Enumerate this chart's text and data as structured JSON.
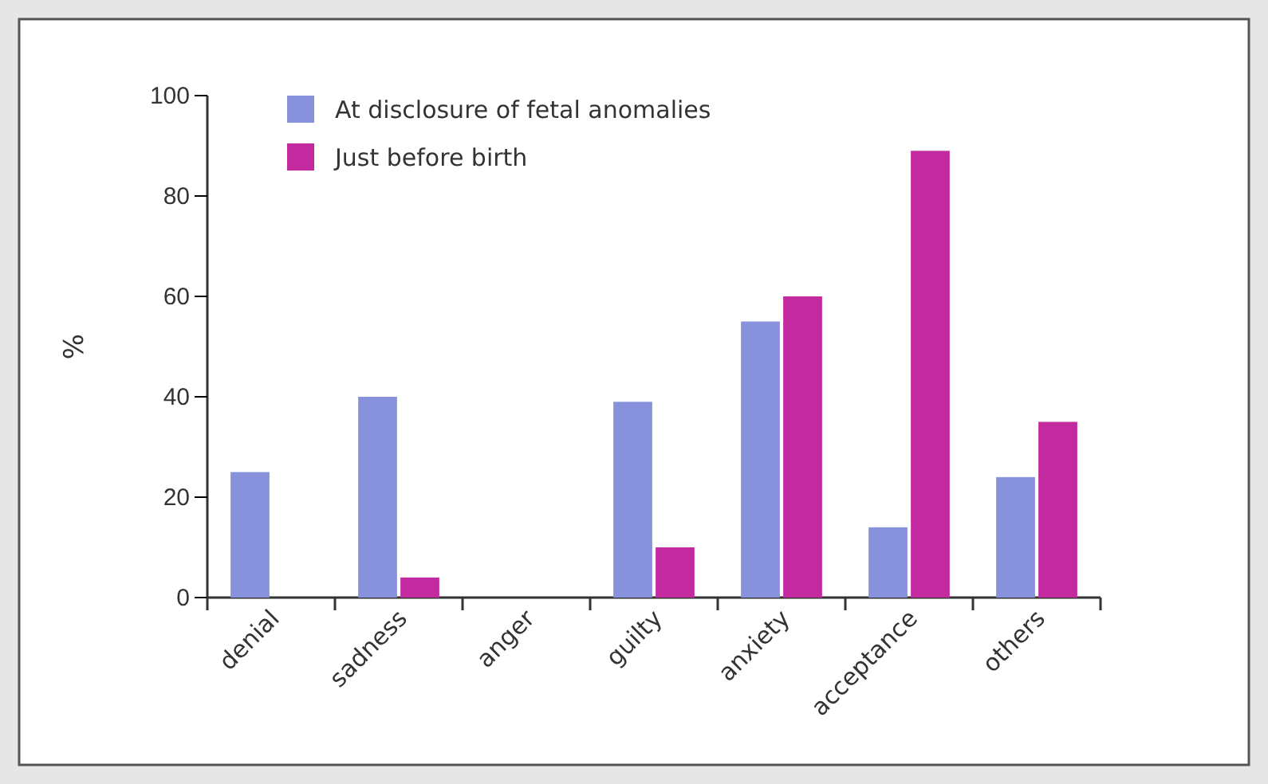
{
  "chart_data": {
    "type": "bar",
    "ylabel": "%",
    "categories": [
      "denial",
      "sadness",
      "anger",
      "guilty",
      "anxiety",
      "acceptance",
      "others"
    ],
    "series": [
      {
        "name": "At disclosure of fetal anomalies",
        "color": "#8791dc",
        "values": [
          25,
          40,
          0,
          39,
          55,
          14,
          24
        ]
      },
      {
        "name": "Just before birth",
        "color": "#c42a9f",
        "values": [
          0,
          4,
          0,
          10,
          60,
          89,
          35
        ]
      }
    ],
    "ylim": [
      0,
      100
    ],
    "yticks": [
      0,
      20,
      40,
      60,
      80,
      100
    ],
    "grid": false,
    "legend": "top left"
  }
}
